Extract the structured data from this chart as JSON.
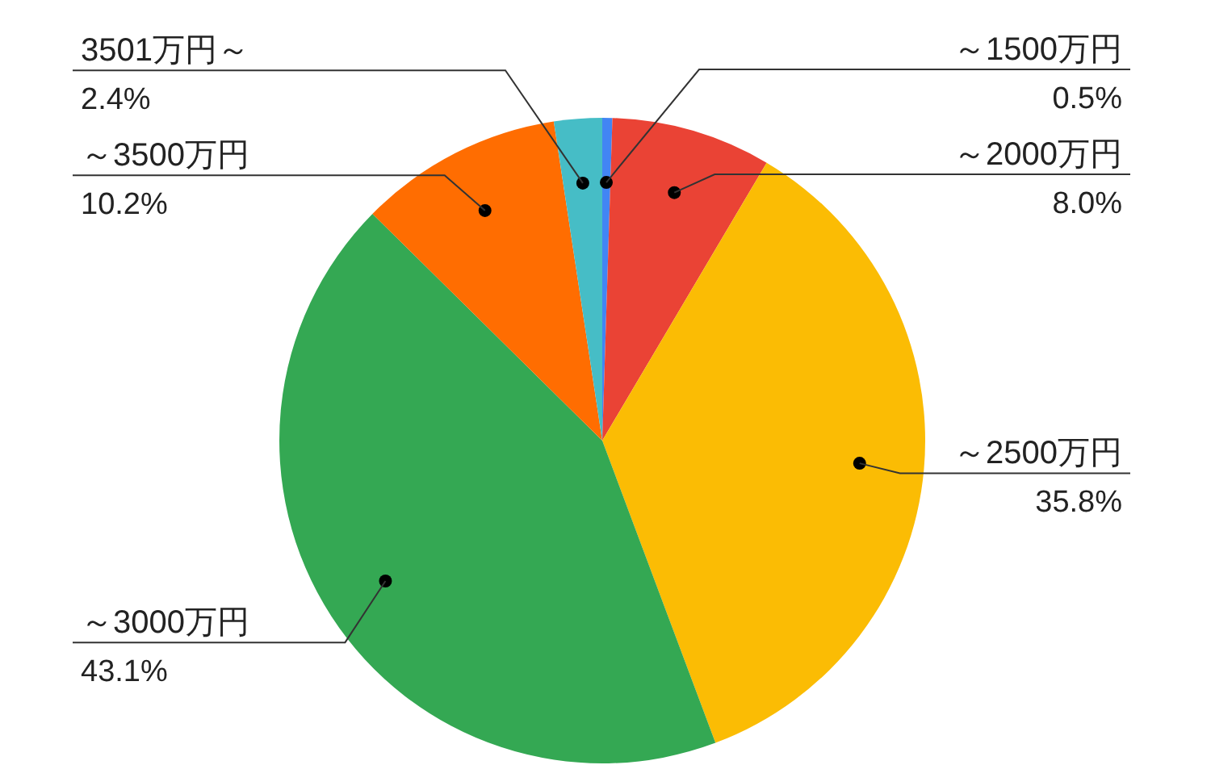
{
  "chart_data": {
    "type": "pie",
    "categories": [
      "～1500万円",
      "～2000万円",
      "～2500万円",
      "～3000万円",
      "～3500万円",
      "3501万円～"
    ],
    "values": [
      0.5,
      8.0,
      35.8,
      43.1,
      10.2,
      2.4
    ],
    "colors": [
      "#4285f4",
      "#ea4335",
      "#fbbc04",
      "#34a853",
      "#ff6d01",
      "#46bdc6"
    ],
    "value_labels": [
      "0.5%",
      "8.0%",
      "35.8%",
      "43.1%",
      "10.2%",
      "2.4%"
    ],
    "legend": false
  }
}
